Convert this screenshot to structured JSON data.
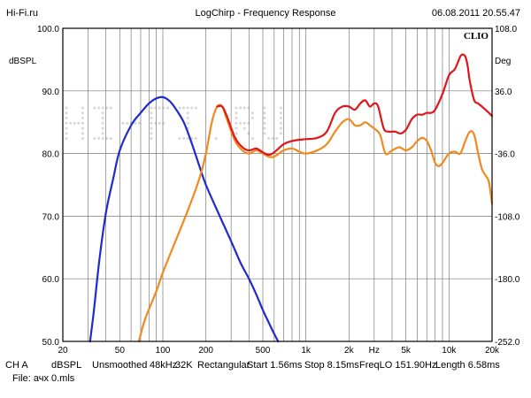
{
  "header": {
    "left": "Hi-Fi.ru",
    "title": "LogChirp - Frequency Response",
    "datetime": "06.08.2011 20.55.47"
  },
  "brand": "CLIO",
  "watermark": "HI-FI.RU",
  "footer": {
    "channel": "CH A",
    "unit": "dBSPL",
    "smoothing": "Unsmoothed",
    "rate": "48kHz",
    "size": "32K",
    "window": "Rectangular",
    "start": "Start 1.56ms",
    "stop": "Stop 8.15ms",
    "freqlo": "FreqLO 151.90Hz",
    "length": "Length 6.58ms",
    "file": "File: ачх 0.mls"
  },
  "colors": {
    "blue": "#1e2bd0",
    "orange": "#f08a1e",
    "red": "#e0161a",
    "grid": "#7a7a7a",
    "watermark": "#d8d8d8"
  },
  "chart_data": {
    "type": "line",
    "ylabel": "dBSPL",
    "y2label": "Deg",
    "xlabel": "Hz",
    "xscale": "log",
    "xlim": [
      20,
      20000
    ],
    "ylim": [
      50,
      100
    ],
    "y2lim": [
      -252,
      108
    ],
    "x_ticks": [
      {
        "v": 20,
        "label": "20"
      },
      {
        "v": 50,
        "label": "50"
      },
      {
        "v": 100,
        "label": "100"
      },
      {
        "v": 200,
        "label": "200"
      },
      {
        "v": 500,
        "label": "500"
      },
      {
        "v": 1000,
        "label": "1k"
      },
      {
        "v": 2000,
        "label": "2k"
      },
      {
        "v": 5000,
        "label": "5k"
      },
      {
        "v": 10000,
        "label": "10k"
      },
      {
        "v": 20000,
        "label": "20k"
      }
    ],
    "y_ticks": [
      {
        "v": 100,
        "label": "100.0"
      },
      {
        "v": 90,
        "label": "90.0"
      },
      {
        "v": 80,
        "label": "80.0"
      },
      {
        "v": 70,
        "label": "70.0"
      },
      {
        "v": 60,
        "label": "60.0"
      },
      {
        "v": 50,
        "label": "50.0"
      }
    ],
    "y2_ticks": [
      {
        "v": 108,
        "label": "108.0"
      },
      {
        "v": 36,
        "label": "36.0"
      },
      {
        "v": -36,
        "label": "-36.0"
      },
      {
        "v": -108,
        "label": "-108.0"
      },
      {
        "v": -180,
        "label": "-180.0"
      },
      {
        "v": -252,
        "label": "-252.0"
      }
    ],
    "grid": true,
    "series": [
      {
        "color": "blue",
        "x": [
          31,
          33,
          36,
          40,
          45,
          50,
          60,
          70,
          80,
          90,
          100,
          110,
          120,
          140,
          160,
          180,
          200,
          250,
          300,
          350,
          400,
          450,
          500,
          550,
          600,
          640
        ],
        "y": [
          50,
          55,
          63,
          70.5,
          76,
          80.5,
          84.5,
          86.5,
          88,
          88.8,
          89,
          88.5,
          87.5,
          85,
          81.5,
          78,
          75,
          70,
          66,
          62.5,
          60,
          57.5,
          55,
          53,
          51.2,
          50
        ]
      },
      {
        "color": "orange",
        "x": [
          68,
          75,
          90,
          100,
          120,
          150,
          180,
          200,
          220,
          240,
          260,
          280,
          320,
          360,
          400,
          450,
          500,
          550,
          600,
          700,
          800,
          900,
          1000,
          1200,
          1400,
          1600,
          1800,
          2000,
          2200,
          2400,
          2600,
          2800,
          3000,
          3300,
          3600,
          4000,
          4500,
          5000,
          5500,
          6000,
          6500,
          7000,
          7500,
          8000,
          8500,
          9000,
          10000,
          11000,
          12000,
          13000,
          14000,
          15000,
          16000,
          17000,
          18000,
          19000,
          20000
        ],
        "y": [
          50,
          53.5,
          58,
          61,
          65.5,
          71,
          76,
          80,
          85,
          87.5,
          87.5,
          85.5,
          82,
          80.5,
          80,
          80.5,
          80,
          79.5,
          79.5,
          80.5,
          80.8,
          80.3,
          80,
          80.5,
          81.5,
          83.5,
          85,
          85.5,
          84.5,
          84.5,
          85,
          84.5,
          84,
          83,
          80,
          80.5,
          81,
          80.5,
          81,
          82,
          82.5,
          82,
          80.5,
          78.5,
          78,
          78.5,
          80,
          80.3,
          80,
          82,
          83.5,
          83,
          80,
          77.5,
          76.5,
          75.5,
          72
        ]
      },
      {
        "color": "red",
        "x": [
          240,
          260,
          280,
          320,
          360,
          400,
          450,
          500,
          550,
          600,
          700,
          800,
          900,
          1000,
          1200,
          1400,
          1600,
          1800,
          2000,
          2200,
          2400,
          2600,
          2800,
          3000,
          3200,
          3500,
          3800,
          4200,
          4600,
          5000,
          5500,
          6000,
          6500,
          7000,
          7500,
          8000,
          9000,
          10000,
          11000,
          12000,
          12500,
          13000,
          13500,
          14000,
          15000,
          16000,
          17000,
          18000,
          19000,
          20000
        ],
        "y": [
          87.5,
          87.5,
          86,
          82.5,
          81,
          80.5,
          80.8,
          80.2,
          79.8,
          80.2,
          81.5,
          82,
          82.2,
          82.3,
          82.5,
          83.5,
          86.5,
          87.5,
          87.5,
          87,
          88,
          88.5,
          87.5,
          88,
          87.5,
          84,
          83.5,
          83.5,
          83.2,
          83.8,
          85.5,
          86.2,
          86.2,
          86.5,
          86.5,
          87,
          89.5,
          92.5,
          93.5,
          95.5,
          95.8,
          95.5,
          94,
          91.5,
          88.5,
          88,
          87.5,
          87,
          86.5,
          86
        ]
      }
    ]
  }
}
